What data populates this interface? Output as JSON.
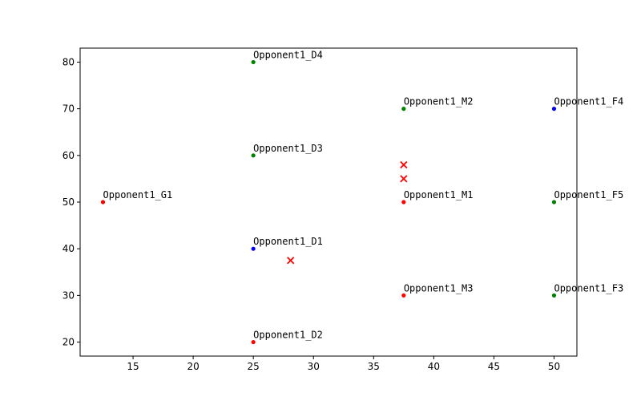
{
  "chart_data": {
    "type": "scatter",
    "title": "",
    "xlabel": "",
    "ylabel": "",
    "xlim": [
      10.6,
      51.9
    ],
    "ylim": [
      17,
      83
    ],
    "grid": false,
    "xticks": [
      15,
      20,
      25,
      30,
      35,
      40,
      45,
      50
    ],
    "yticks": [
      20,
      30,
      40,
      50,
      60,
      70,
      80
    ],
    "colors": {
      "red": "#ff0000",
      "green": "#008000",
      "blue": "#0000ff"
    },
    "points": [
      {
        "label": "Opponent1_G1",
        "x": 12.5,
        "y": 50,
        "color": "red"
      },
      {
        "label": "Opponent1_D1",
        "x": 25,
        "y": 40,
        "color": "blue"
      },
      {
        "label": "Opponent1_D2",
        "x": 25,
        "y": 20,
        "color": "red"
      },
      {
        "label": "Opponent1_D3",
        "x": 25,
        "y": 60,
        "color": "green"
      },
      {
        "label": "Opponent1_D4",
        "x": 25,
        "y": 80,
        "color": "green"
      },
      {
        "label": "Opponent1_M1",
        "x": 37.5,
        "y": 50,
        "color": "red"
      },
      {
        "label": "Opponent1_M2",
        "x": 37.5,
        "y": 70,
        "color": "green"
      },
      {
        "label": "Opponent1_M3",
        "x": 37.5,
        "y": 30,
        "color": "red"
      },
      {
        "label": "Opponent1_F3",
        "x": 50,
        "y": 30,
        "color": "green"
      },
      {
        "label": "Opponent1_F4",
        "x": 50,
        "y": 70,
        "color": "blue"
      },
      {
        "label": "Opponent1_F5",
        "x": 50,
        "y": 50,
        "color": "green"
      }
    ],
    "markers_x": [
      {
        "x": 37.5,
        "y": 58,
        "color": "red"
      },
      {
        "x": 37.5,
        "y": 55,
        "color": "red"
      },
      {
        "x": 28.1,
        "y": 37.5,
        "color": "red"
      }
    ]
  }
}
